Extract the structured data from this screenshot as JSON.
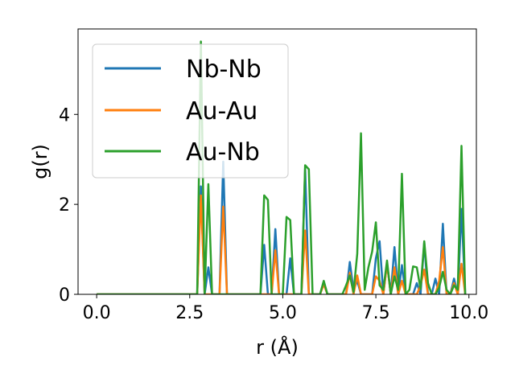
{
  "chart_data": {
    "type": "line",
    "xlabel": "r (Å)",
    "ylabel": "g(r)",
    "xlim": [
      -0.5,
      10.2
    ],
    "ylim": [
      0,
      5.9
    ],
    "xticks": [
      0.0,
      2.5,
      5.0,
      7.5,
      10.0
    ],
    "xtick_labels": [
      "0.0",
      "2.5",
      "5.0",
      "7.5",
      "10.0"
    ],
    "yticks": [
      0,
      2,
      4
    ],
    "ytick_labels": [
      "0",
      "2",
      "4"
    ],
    "grid": false,
    "legend_position": "top-left",
    "series": [
      {
        "name": "Nb-Nb",
        "color": "#1f77b4",
        "x": [
          0,
          2.7,
          2.8,
          2.9,
          3.0,
          3.1,
          3.3,
          3.4,
          3.5,
          4.4,
          4.5,
          4.6,
          4.7,
          4.8,
          4.9,
          5.0,
          5.1,
          5.2,
          5.3,
          5.5,
          5.6,
          5.7,
          6.0,
          6.1,
          6.2,
          6.7,
          6.8,
          6.9,
          7.0,
          7.1,
          7.2,
          7.4,
          7.5,
          7.6,
          7.7,
          7.8,
          7.9,
          8.0,
          8.1,
          8.2,
          8.3,
          8.5,
          8.6,
          8.7,
          8.8,
          8.9,
          9.0,
          9.1,
          9.2,
          9.3,
          9.4,
          9.5,
          9.6,
          9.7,
          9.8,
          9.9
        ],
        "y": [
          0,
          0,
          2.4,
          0,
          0.6,
          0,
          0,
          2.95,
          0,
          0,
          1.1,
          0,
          0,
          1.45,
          0,
          0,
          0,
          0.8,
          0,
          0,
          2.8,
          0,
          0,
          0.25,
          0,
          0,
          0.72,
          0.1,
          0.3,
          0,
          0,
          0,
          0.8,
          1.18,
          0,
          0.7,
          0,
          1.05,
          0,
          0.65,
          0,
          0,
          0.25,
          0,
          1.15,
          0,
          0,
          0.35,
          0,
          1.57,
          0,
          0,
          0.35,
          0,
          1.9,
          0
        ]
      },
      {
        "name": "Au-Au",
        "color": "#ff7f0e",
        "x": [
          0,
          2.7,
          2.8,
          2.9,
          3.3,
          3.4,
          3.5,
          4.7,
          4.8,
          4.9,
          5.5,
          5.6,
          5.7,
          6.0,
          6.1,
          6.2,
          6.7,
          6.8,
          6.9,
          7.0,
          7.1,
          7.4,
          7.5,
          7.6,
          7.7,
          7.8,
          7.9,
          8.0,
          8.1,
          8.2,
          8.3,
          8.6,
          8.7,
          8.8,
          8.9,
          9.1,
          9.2,
          9.3,
          9.4,
          9.5,
          9.6,
          9.7,
          9.8,
          9.9
        ],
        "y": [
          0,
          0,
          2.2,
          0,
          0,
          1.95,
          0,
          0,
          0.98,
          0,
          0,
          1.42,
          0,
          0,
          0.22,
          0,
          0,
          0.48,
          0,
          0.42,
          0,
          0,
          0.4,
          0.3,
          0,
          0.68,
          0,
          0.6,
          0,
          0.3,
          0,
          0,
          0.2,
          0.55,
          0,
          0,
          0.3,
          1.05,
          0,
          0,
          0.25,
          0,
          0.68,
          0
        ]
      },
      {
        "name": "Au-Nb",
        "color": "#2ca02c",
        "x": [
          0,
          2.7,
          2.8,
          2.9,
          3.0,
          3.1,
          4.4,
          4.5,
          4.6,
          4.7,
          4.8,
          4.9,
          5.0,
          5.1,
          5.2,
          5.3,
          5.5,
          5.6,
          5.7,
          5.8,
          6.0,
          6.1,
          6.2,
          6.5,
          6.6,
          6.7,
          6.8,
          6.9,
          7.0,
          7.1,
          7.2,
          7.3,
          7.4,
          7.5,
          7.6,
          7.7,
          7.8,
          7.9,
          8.0,
          8.1,
          8.2,
          8.3,
          8.4,
          8.5,
          8.6,
          8.7,
          8.8,
          8.9,
          9.0,
          9.1,
          9.2,
          9.3,
          9.4,
          9.5,
          9.6,
          9.7,
          9.8,
          9.9
        ],
        "y": [
          0,
          0,
          5.62,
          0,
          2.45,
          0,
          0,
          2.2,
          2.1,
          0,
          0,
          0,
          0,
          1.72,
          1.65,
          0,
          0,
          2.87,
          2.78,
          0,
          0,
          0.3,
          0,
          0,
          0,
          0.2,
          0.42,
          0.05,
          0.9,
          3.58,
          0.1,
          0.6,
          0.95,
          1.6,
          0.2,
          0.1,
          0.75,
          0,
          0.4,
          0.1,
          2.68,
          0,
          0.1,
          0.62,
          0.6,
          0.12,
          1.18,
          0.25,
          0,
          0,
          0.15,
          0.5,
          0.1,
          0,
          0.2,
          0.1,
          3.3,
          0
        ]
      }
    ]
  }
}
